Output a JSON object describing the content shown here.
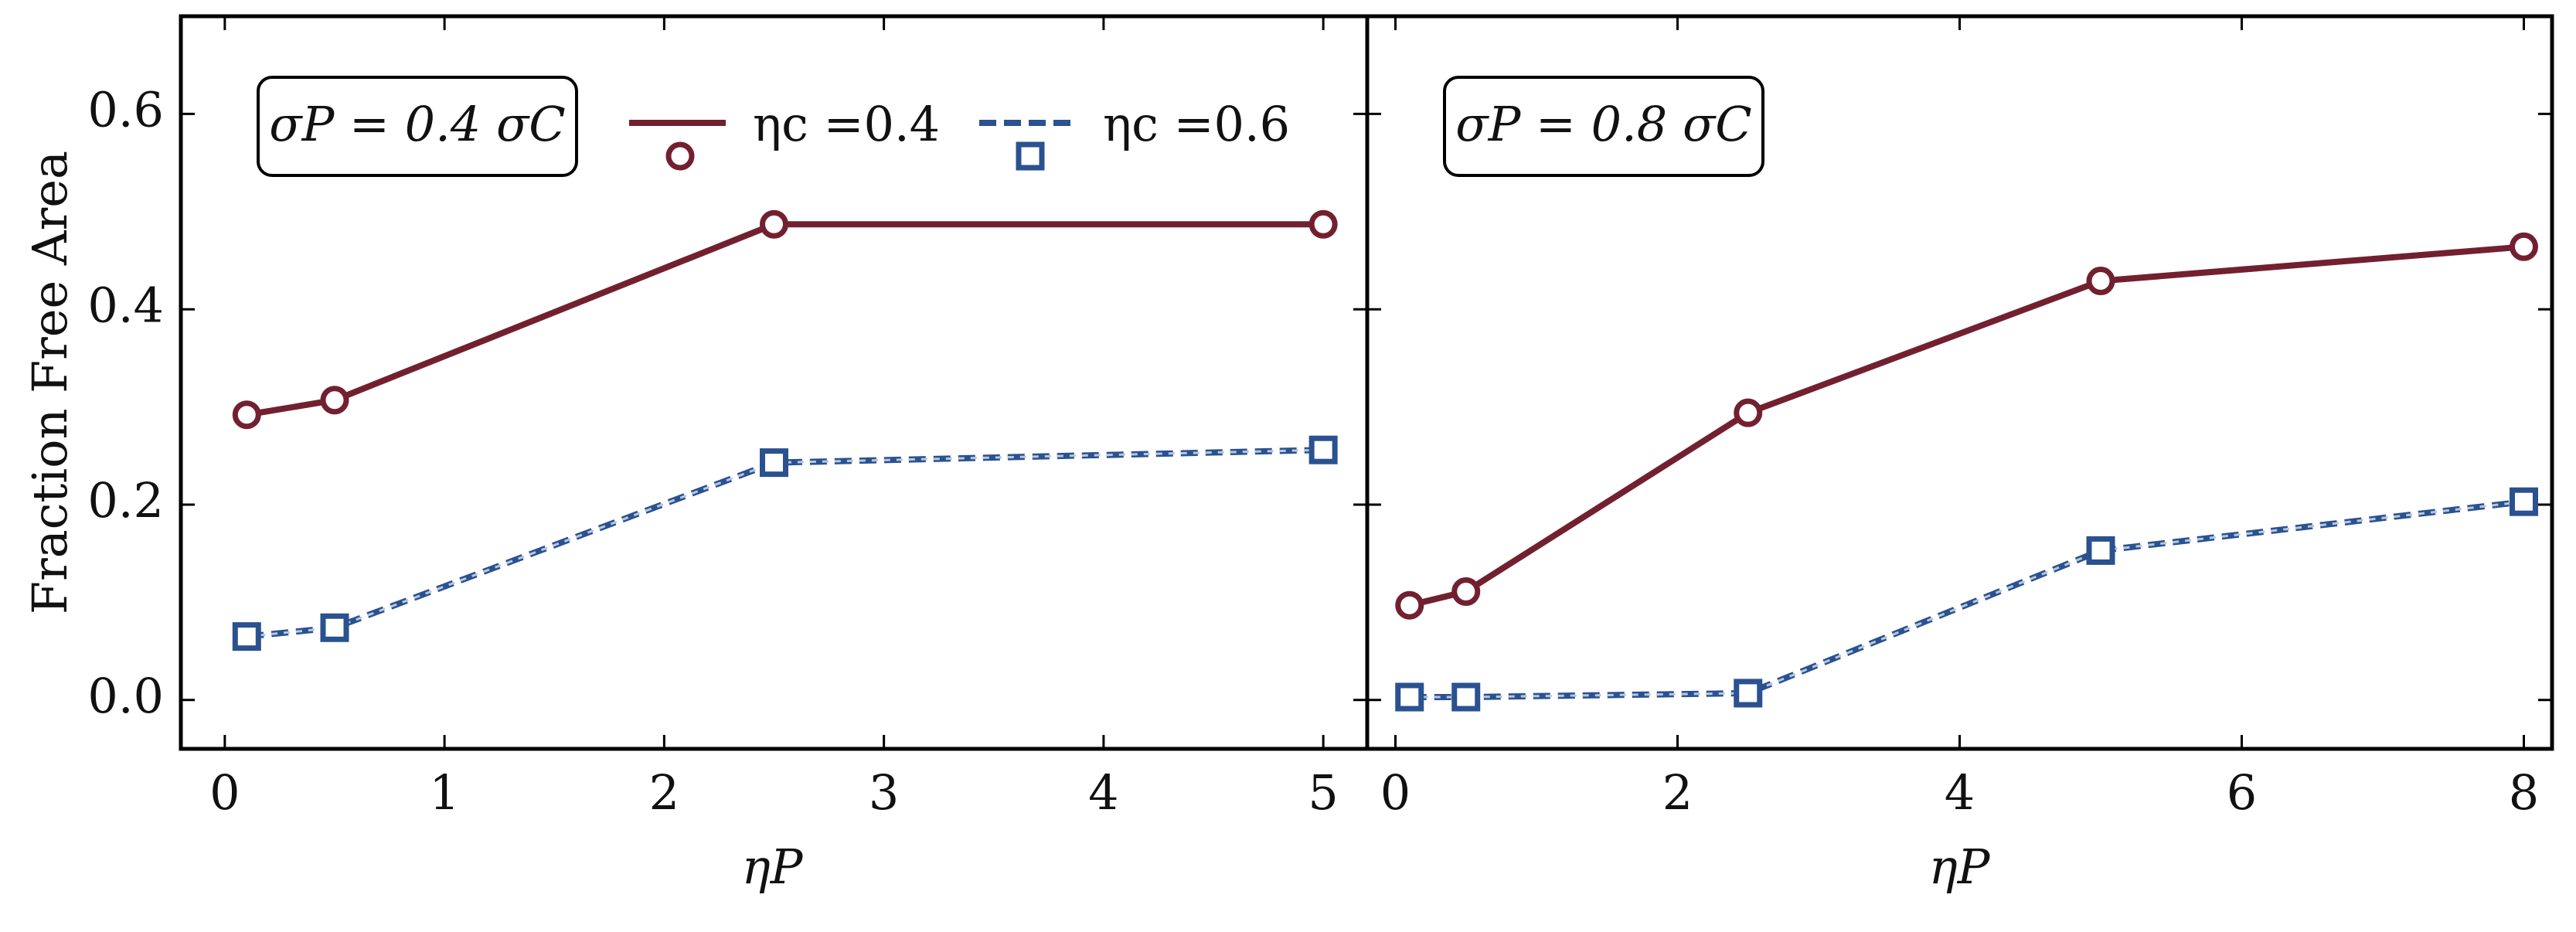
{
  "chart_data": [
    {
      "type": "line",
      "annotation": "σP = 0.4 σC",
      "xlabel": "ηP",
      "ylabel": "Fraction Free Area",
      "x": [
        0.1,
        0.5,
        2.5,
        5
      ],
      "series": [
        {
          "name": "ηc =0.4",
          "color": "#722030",
          "marker": "circle",
          "dash": false,
          "values": [
            0.292,
            0.307,
            0.487,
            0.487
          ]
        },
        {
          "name": "ηc =0.6",
          "color": "#2a5190",
          "marker": "square",
          "dash": true,
          "values": [
            0.065,
            0.074,
            0.243,
            0.256
          ]
        }
      ],
      "xlim": [
        -0.2,
        5.2
      ],
      "xticks": [
        0,
        1,
        2,
        3,
        4,
        5
      ],
      "ylim": [
        -0.05,
        0.7
      ],
      "yticks": [
        {
          "value": 0,
          "label": "0.0"
        },
        0.2,
        0.4,
        0.6
      ],
      "legend": "upper center"
    },
    {
      "type": "line",
      "annotation": "σP = 0.8 σC",
      "xlabel": "ηP",
      "x": [
        0.1,
        0.5,
        2.5,
        5,
        8
      ],
      "series": [
        {
          "color": "#722030",
          "marker": "circle",
          "dash": false,
          "values": [
            0.097,
            0.111,
            0.294,
            0.429,
            0.464
          ]
        },
        {
          "color": "#2a5190",
          "marker": "square",
          "dash": true,
          "values": [
            0.003,
            0.003,
            0.007,
            0.153,
            0.203
          ]
        }
      ],
      "xlim": [
        -0.2,
        8.2
      ],
      "xticks": [
        0,
        2,
        4,
        6,
        8
      ],
      "ylim": [
        -0.05,
        0.7
      ]
    }
  ]
}
